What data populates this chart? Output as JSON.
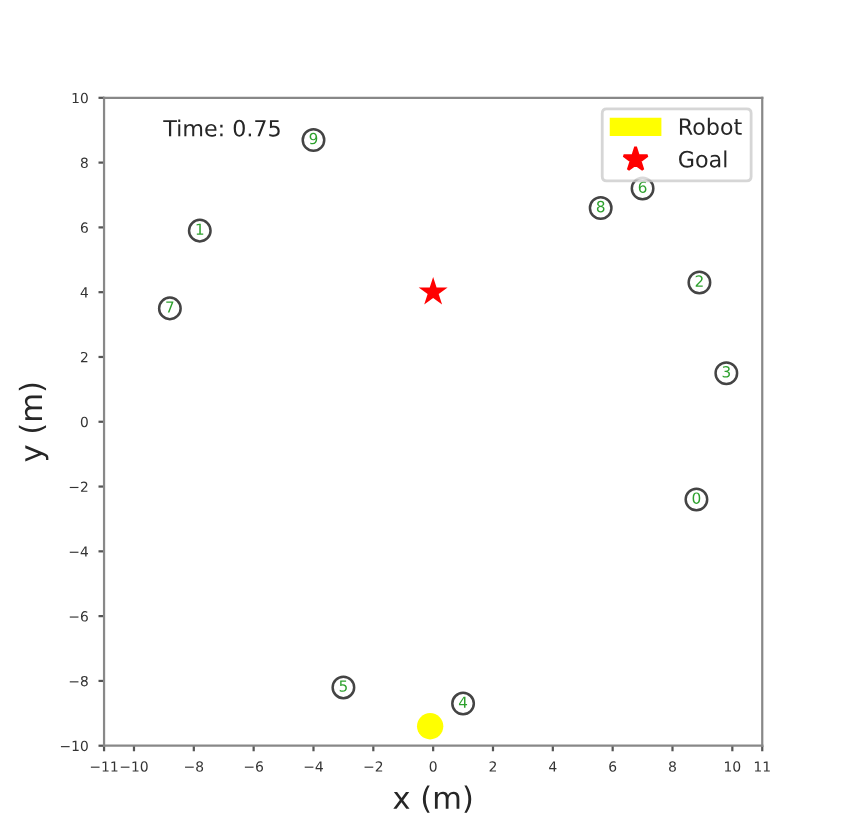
{
  "chart_data": {
    "type": "scatter",
    "xlabel": "x (m)",
    "ylabel": "y (m)",
    "annotations": [
      "Time: 0.75",
      {
        "text": "0",
        "x": 8.8,
        "y": -2.4
      },
      {
        "text": "1",
        "x": -7.8,
        "y": 5.9
      },
      {
        "text": "2",
        "x": 8.9,
        "y": 4.3
      },
      {
        "text": "3",
        "x": 9.8,
        "y": 1.5
      },
      {
        "text": "4",
        "x": 1.0,
        "y": -8.7
      },
      {
        "text": "5",
        "x": -3.0,
        "y": -8.2
      },
      {
        "text": "6",
        "x": 7.0,
        "y": 7.2
      },
      {
        "text": "7",
        "x": -8.8,
        "y": 3.5
      },
      {
        "text": "8",
        "x": 5.6,
        "y": 6.6
      },
      {
        "text": "9",
        "x": -4.0,
        "y": 8.7
      }
    ],
    "series": [
      {
        "marker": "circle",
        "color": "#444444",
        "x": [
          8.8,
          -7.8,
          8.9,
          9.8,
          1.0,
          -3.0,
          7.0,
          -8.8,
          5.6,
          -4.0
        ],
        "values": [
          -2.4,
          5.9,
          4.3,
          1.5,
          -8.7,
          -8.2,
          7.2,
          3.5,
          6.6,
          8.7
        ]
      },
      {
        "marker": "circle",
        "name": "Robot",
        "color": "#ffff00",
        "x": [
          -0.1
        ],
        "values": [
          -9.4
        ]
      },
      {
        "marker": "star",
        "name": "Goal",
        "color": "#ff0000",
        "x": [
          0
        ],
        "values": [
          4
        ]
      }
    ],
    "xlim": [
      -11,
      11
    ],
    "xticks": [
      {
        "value": -11,
        "label": "−11"
      },
      {
        "value": -10,
        "label": "−10"
      },
      {
        "value": -8,
        "label": "−8"
      },
      {
        "value": -6,
        "label": "−6"
      },
      {
        "value": -4,
        "label": "−4"
      },
      {
        "value": -2,
        "label": "−2"
      },
      0,
      2,
      4,
      6,
      8,
      10,
      11
    ],
    "ylim": [
      -10,
      10
    ],
    "yticks": [
      {
        "value": -10,
        "label": "−10"
      },
      {
        "value": -8,
        "label": "−8"
      },
      {
        "value": -6,
        "label": "−6"
      },
      {
        "value": -4,
        "label": "−4"
      },
      {
        "value": -2,
        "label": "−2"
      },
      0,
      2,
      4,
      6,
      8,
      10
    ],
    "legend": "top right"
  }
}
